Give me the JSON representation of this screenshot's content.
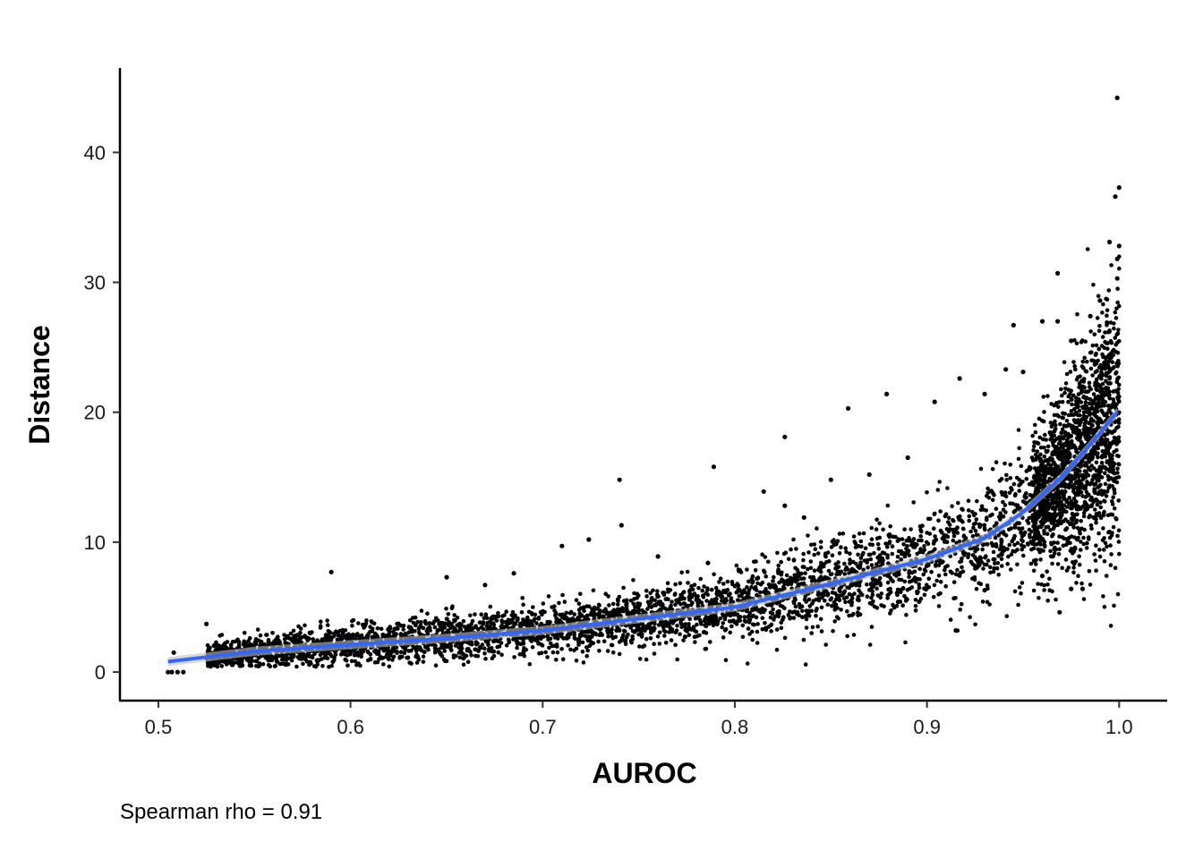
{
  "chart_data": {
    "type": "scatter",
    "title": "",
    "xlabel": "AUROC",
    "ylabel": "Distance",
    "caption": "Spearman rho = 0.91",
    "xlim": [
      0.48,
      1.025
    ],
    "ylim": [
      -2.2,
      46.5
    ],
    "x_ticks": [
      0.5,
      0.6,
      0.7,
      0.8,
      0.9,
      1.0
    ],
    "x_tick_labels": [
      "0.5",
      "0.6",
      "0.7",
      "0.8",
      "0.9",
      "1.0"
    ],
    "y_ticks": [
      0,
      10,
      20,
      30,
      40
    ],
    "y_tick_labels": [
      "0",
      "10",
      "20",
      "30",
      "40"
    ],
    "grid": false,
    "legend": "none",
    "point_color": "#000000",
    "smooth_color": "#3366ff",
    "smooth_ribbon_color": "#bfbfbf",
    "smooth_fit": {
      "x": [
        0.505,
        0.55,
        0.6,
        0.65,
        0.7,
        0.75,
        0.8,
        0.85,
        0.9,
        0.93,
        0.95,
        0.97,
        0.985,
        1.0
      ],
      "y": [
        0.8,
        1.6,
        2.1,
        2.6,
        3.2,
        4.1,
        5.0,
        6.8,
        8.7,
        10.3,
        12.3,
        15.0,
        17.5,
        20.2
      ]
    },
    "outliers": [
      {
        "x": 0.999,
        "y": 44.2
      },
      {
        "x": 1.0,
        "y": 37.3
      },
      {
        "x": 0.998,
        "y": 36.6
      },
      {
        "x": 0.995,
        "y": 33.1
      },
      {
        "x": 1.0,
        "y": 32.8
      },
      {
        "x": 0.999,
        "y": 31.8
      },
      {
        "x": 0.968,
        "y": 30.7
      },
      {
        "x": 0.999,
        "y": 30.3
      },
      {
        "x": 0.96,
        "y": 27.0
      },
      {
        "x": 0.968,
        "y": 27.0
      },
      {
        "x": 0.945,
        "y": 26.7
      },
      {
        "x": 0.941,
        "y": 23.3
      },
      {
        "x": 0.917,
        "y": 22.6
      },
      {
        "x": 0.879,
        "y": 21.4
      },
      {
        "x": 0.93,
        "y": 21.4
      },
      {
        "x": 0.904,
        "y": 20.8
      },
      {
        "x": 0.859,
        "y": 20.3
      },
      {
        "x": 0.826,
        "y": 18.1
      },
      {
        "x": 0.789,
        "y": 15.8
      },
      {
        "x": 0.74,
        "y": 14.8
      },
      {
        "x": 0.815,
        "y": 13.9
      },
      {
        "x": 0.741,
        "y": 11.3
      },
      {
        "x": 0.724,
        "y": 10.2
      },
      {
        "x": 0.836,
        "y": 11.9
      },
      {
        "x": 0.826,
        "y": 12.8
      },
      {
        "x": 0.71,
        "y": 9.7
      },
      {
        "x": 0.59,
        "y": 7.7
      },
      {
        "x": 0.525,
        "y": 3.7
      },
      {
        "x": 0.969,
        "y": 4.6
      },
      {
        "x": 0.981,
        "y": 6.4
      },
      {
        "x": 0.975,
        "y": 6.4
      },
      {
        "x": 0.915,
        "y": 3.2
      },
      {
        "x": 0.885,
        "y": 5.4
      },
      {
        "x": 0.96,
        "y": 7.4
      },
      {
        "x": 0.93,
        "y": 6.3
      },
      {
        "x": 0.505,
        "y": 0.0
      },
      {
        "x": 0.507,
        "y": 0.0
      },
      {
        "x": 0.51,
        "y": 0.0
      },
      {
        "x": 0.513,
        "y": 0.0
      },
      {
        "x": 0.508,
        "y": 1.5
      },
      {
        "x": 0.65,
        "y": 7.3
      },
      {
        "x": 0.67,
        "y": 6.7
      },
      {
        "x": 0.685,
        "y": 7.6
      },
      {
        "x": 0.76,
        "y": 8.9
      },
      {
        "x": 0.786,
        "y": 8.4
      },
      {
        "x": 0.85,
        "y": 14.8
      },
      {
        "x": 0.87,
        "y": 15.2
      },
      {
        "x": 0.89,
        "y": 16.5
      },
      {
        "x": 0.99,
        "y": 28.6
      },
      {
        "x": 0.985,
        "y": 27.4
      },
      {
        "x": 0.975,
        "y": 25.5
      },
      {
        "x": 0.95,
        "y": 23.1
      }
    ]
  }
}
